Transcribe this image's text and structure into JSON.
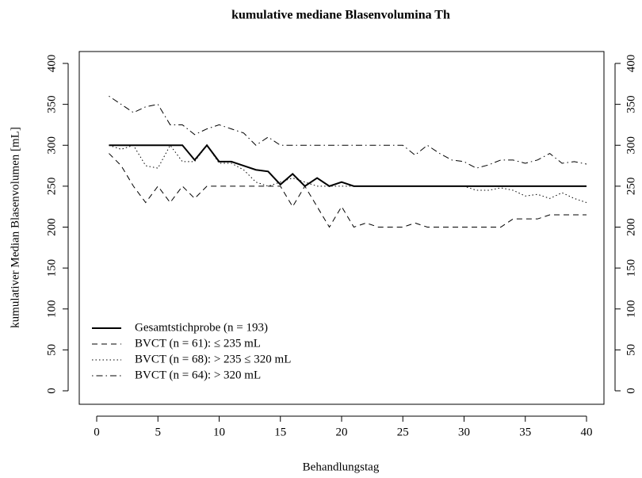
{
  "chart_data": {
    "type": "line",
    "title": "kumulative mediane Blasenvolumina Th",
    "x_label": "Behandlungstag",
    "y_label": "kumulativer Median Blasenvolumen [mL]",
    "x": [
      1,
      2,
      3,
      4,
      5,
      6,
      7,
      8,
      9,
      10,
      11,
      12,
      13,
      14,
      15,
      16,
      17,
      18,
      19,
      20,
      21,
      22,
      23,
      24,
      25,
      26,
      27,
      28,
      29,
      30,
      31,
      32,
      33,
      34,
      35,
      36,
      37,
      38,
      39,
      40
    ],
    "series": [
      {
        "name": "Gesamtstichprobe (n = 193)",
        "color": "#000000",
        "linestyle": "solid",
        "linewidth": 2,
        "values": [
          300,
          300,
          300,
          300,
          300,
          300,
          300,
          282,
          300,
          280,
          280,
          275,
          270,
          268,
          252,
          265,
          250,
          260,
          250,
          255,
          250,
          250,
          250,
          250,
          250,
          250,
          250,
          250,
          250,
          250,
          250,
          250,
          250,
          250,
          250,
          250,
          250,
          250,
          250,
          250
        ]
      },
      {
        "name": "BVCT (n = 61): ≤ 235 mL",
        "color": "#000000",
        "linestyle": "dashed",
        "linewidth": 1,
        "values": [
          290,
          275,
          250,
          230,
          250,
          230,
          250,
          235,
          250,
          250,
          250,
          250,
          250,
          250,
          250,
          225,
          250,
          225,
          200,
          225,
          200,
          205,
          200,
          200,
          200,
          205,
          200,
          200,
          200,
          200,
          200,
          200,
          200,
          210,
          210,
          210,
          215,
          215,
          215,
          215
        ]
      },
      {
        "name": "BVCT (n = 68): > 235 ≤ 320 mL",
        "color": "#000000",
        "linestyle": "dotted",
        "linewidth": 1,
        "values": [
          300,
          295,
          300,
          275,
          272,
          300,
          280,
          280,
          300,
          278,
          278,
          270,
          255,
          250,
          255,
          260,
          255,
          250,
          250,
          250,
          250,
          250,
          250,
          250,
          250,
          250,
          250,
          250,
          250,
          250,
          245,
          245,
          248,
          245,
          238,
          240,
          235,
          242,
          235,
          230
        ]
      },
      {
        "name": "BVCT (n = 64): > 320 mL",
        "color": "#000000",
        "linestyle": "dashdot",
        "linewidth": 1,
        "values": [
          360,
          350,
          340,
          347,
          350,
          325,
          325,
          313,
          320,
          325,
          320,
          315,
          300,
          310,
          300,
          300,
          300,
          300,
          300,
          300,
          300,
          300,
          300,
          300,
          300,
          288,
          300,
          290,
          282,
          280,
          272,
          276,
          282,
          282,
          278,
          282,
          290,
          278,
          280,
          277
        ]
      }
    ],
    "xlim": [
      0,
      40
    ],
    "xticks": [
      0,
      5,
      10,
      15,
      20,
      25,
      30,
      35,
      40
    ],
    "ylim": [
      0,
      400
    ],
    "yticks": [
      0,
      50,
      100,
      150,
      200,
      250,
      300,
      350,
      400
    ],
    "right_axis": true,
    "legend": "bottomleft"
  }
}
